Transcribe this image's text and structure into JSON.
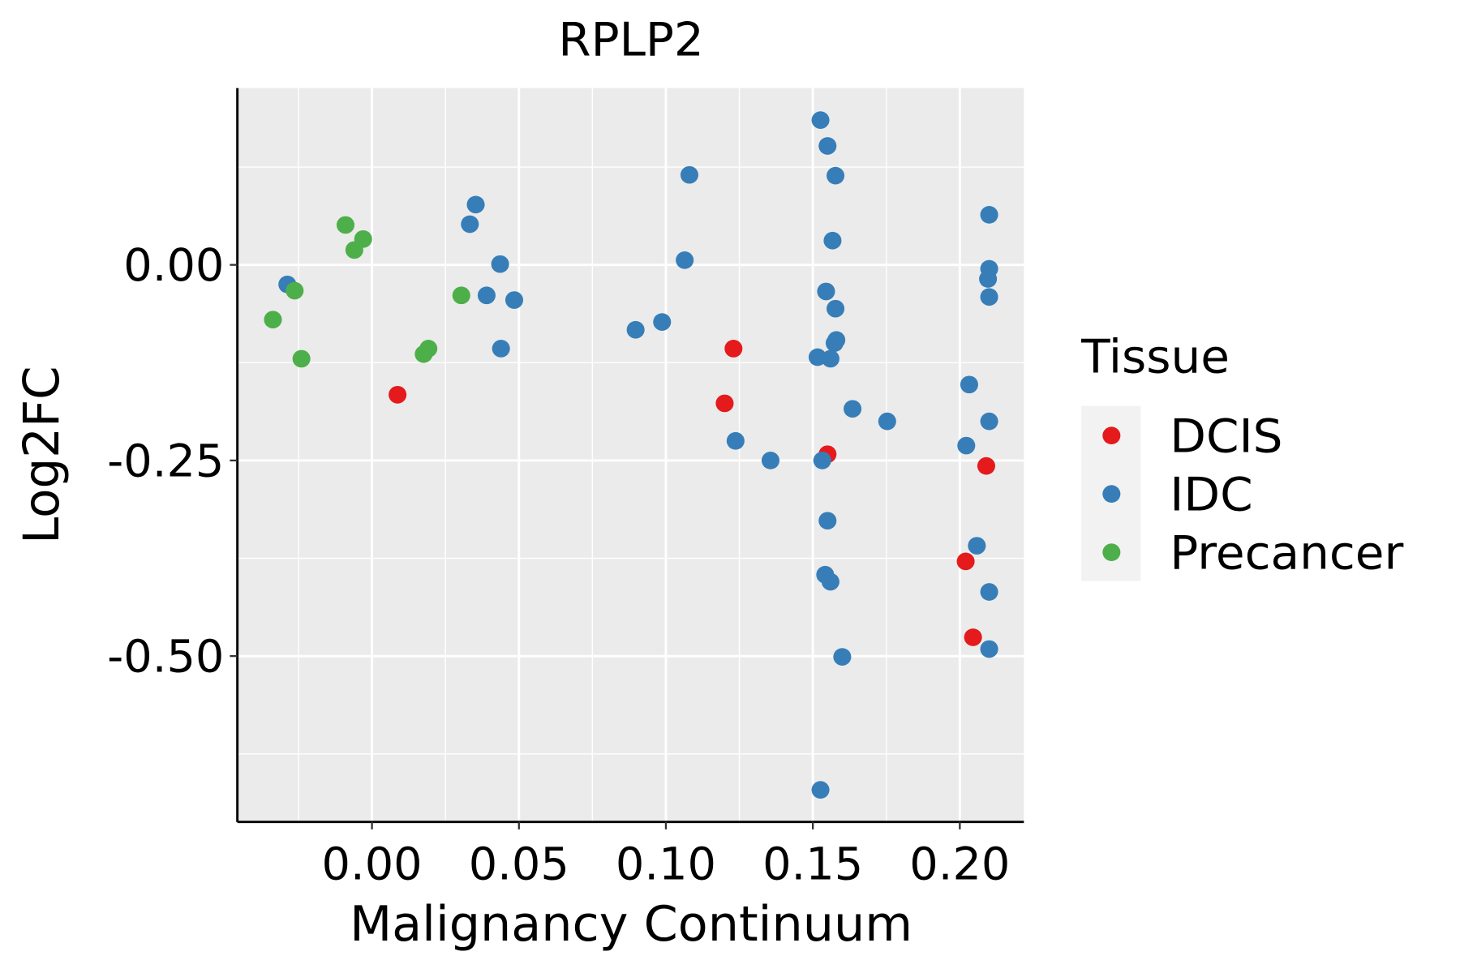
{
  "chart_data": {
    "type": "scatter",
    "title": "RPLP2",
    "xlabel": "Malignancy Continuum",
    "ylabel": "Log2FC",
    "xlim": [
      -0.0458,
      0.2218
    ],
    "ylim": [
      -0.712,
      0.226
    ],
    "xticks": [
      0.0,
      0.05,
      0.1,
      0.15,
      0.2
    ],
    "xtick_labels": [
      "0.00",
      "0.05",
      "0.10",
      "0.15",
      "0.20"
    ],
    "yticks": [
      0.0,
      -0.25,
      -0.5
    ],
    "ytick_labels": [
      "0.00",
      "-0.25",
      "-0.50"
    ],
    "grid": true,
    "legend": {
      "title": "Tissue",
      "placement": "right"
    },
    "series": [
      {
        "name": "DCIS",
        "color": "#E41A1C",
        "points": [
          [
            0.0087,
            -0.166
          ],
          [
            0.123,
            -0.107
          ],
          [
            0.12,
            -0.177
          ],
          [
            0.155,
            -0.242
          ],
          [
            0.209,
            -0.257
          ],
          [
            0.202,
            -0.379
          ],
          [
            0.2045,
            -0.476
          ]
        ]
      },
      {
        "name": "IDC",
        "color": "#377EB8",
        "points": [
          [
            -0.0288,
            -0.025
          ],
          [
            0.0353,
            0.077
          ],
          [
            0.0333,
            0.052
          ],
          [
            0.0436,
            0.001
          ],
          [
            0.039,
            -0.039
          ],
          [
            0.0484,
            -0.045
          ],
          [
            0.0439,
            -0.107
          ],
          [
            0.0897,
            -0.083
          ],
          [
            0.0987,
            -0.073
          ],
          [
            0.1064,
            0.006
          ],
          [
            0.108,
            0.115
          ],
          [
            0.1237,
            -0.225
          ],
          [
            0.1356,
            -0.25
          ],
          [
            0.1526,
            0.185
          ],
          [
            0.155,
            0.152
          ],
          [
            0.1577,
            0.114
          ],
          [
            0.1567,
            0.031
          ],
          [
            0.1545,
            -0.034
          ],
          [
            0.1577,
            -0.056
          ],
          [
            0.158,
            -0.096
          ],
          [
            0.1574,
            -0.1
          ],
          [
            0.1516,
            -0.118
          ],
          [
            0.156,
            -0.12
          ],
          [
            0.1635,
            -0.184
          ],
          [
            0.1753,
            -0.2
          ],
          [
            0.1532,
            -0.25
          ],
          [
            0.155,
            -0.327
          ],
          [
            0.1542,
            -0.396
          ],
          [
            0.156,
            -0.405
          ],
          [
            0.16,
            -0.501
          ],
          [
            0.1526,
            -0.671
          ],
          [
            0.21,
            0.064
          ],
          [
            0.21,
            -0.005
          ],
          [
            0.2096,
            -0.018
          ],
          [
            0.21,
            -0.041
          ],
          [
            0.2032,
            -0.153
          ],
          [
            0.21,
            -0.2
          ],
          [
            0.2022,
            -0.231
          ],
          [
            0.2058,
            -0.359
          ],
          [
            0.21,
            -0.418
          ],
          [
            0.21,
            -0.491
          ]
        ]
      },
      {
        "name": "Precancer",
        "color": "#4DAF4A",
        "points": [
          [
            -0.0337,
            -0.07
          ],
          [
            -0.0263,
            -0.033
          ],
          [
            -0.024,
            -0.12
          ],
          [
            -0.009,
            0.051
          ],
          [
            -0.006,
            0.019
          ],
          [
            -0.003,
            0.033
          ],
          [
            0.0176,
            -0.114
          ],
          [
            0.0192,
            -0.107
          ],
          [
            0.0304,
            -0.039
          ]
        ]
      }
    ]
  }
}
